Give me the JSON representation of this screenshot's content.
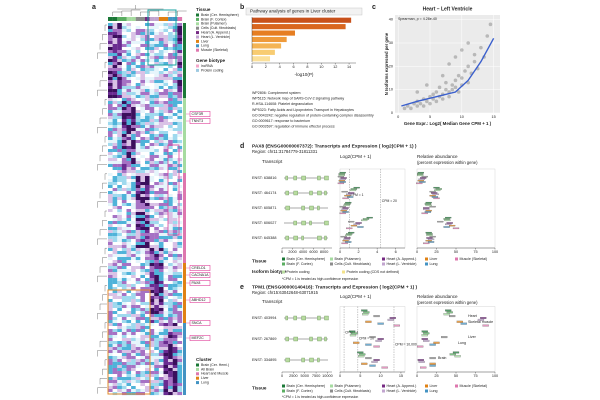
{
  "panel_labels": [
    "a",
    "b",
    "c",
    "d",
    "e"
  ],
  "heatmap": {
    "tissue_title": "Tissue",
    "tissues": [
      {
        "name": "Brain (Cer. Hemisphere)",
        "color": "#1b7837"
      },
      {
        "name": "Brain (F. Cortex)",
        "color": "#5aae61"
      },
      {
        "name": "Brain (Putamen)",
        "color": "#a6dba0"
      },
      {
        "name": "Cells (Cult. fibroblasts)",
        "color": "#8c8c8c"
      },
      {
        "name": "Heart (A. Append.)",
        "color": "#762a83"
      },
      {
        "name": "Heart (L. Ventricle)",
        "color": "#c2a5cf"
      },
      {
        "name": "Liver",
        "color": "#e08214"
      },
      {
        "name": "Lung",
        "color": "#4393c3"
      },
      {
        "name": "Muscle (Skeletal)",
        "color": "#de77ae"
      }
    ],
    "biotype_title": "Gene biotype",
    "biotypes": [
      {
        "name": "lncRNA",
        "color": "#f4a6c8"
      },
      {
        "name": "Protein coding",
        "color": "#9ecae1"
      }
    ],
    "genes": [
      "CSF3R",
      "TNNT3",
      "CRELD1",
      "CACNA1A",
      "PAX8",
      "ABHD12",
      "SNCA",
      "MEF2C"
    ],
    "cluster_title": "Cluster",
    "clusters": [
      {
        "name": "Brain (Cer. Hemi.)",
        "color": "#1b7837"
      },
      {
        "name": "All Brain",
        "color": "#a6dba0"
      },
      {
        "name": "Heart and Muscle",
        "color": "#de77ae"
      },
      {
        "name": "Liver",
        "color": "#e08214"
      },
      {
        "name": "Lung",
        "color": "#4393c3"
      }
    ]
  },
  "panel_d": {
    "title": "PAX8 (ENSG00000007372): Transcripts and Expression ( log2(CPM + 1) )",
    "region": "Region: chr11:31784779-31811331",
    "legend_title": "Tissue",
    "biotype_title": "Isoform biotype",
    "biotypes": [
      {
        "name": "Protein coding",
        "color": "#b8dca0"
      },
      {
        "name": "Protein coding (CDS not defined)",
        "color": "#f3e28a"
      }
    ],
    "footnote": "*CPM = 1 is treated as high-confidence expression"
  },
  "panel_e": {
    "title": "TPM1 (ENSG00000140416): Transcripts and Expression ( log2(CPM + 1) )",
    "region": "Region: chr15:63042648-63071915",
    "legend_title": "Tissue",
    "footnote": "*CPM = 1 is treated as high-confidence expression"
  },
  "chart_data": [
    {
      "type": "bar",
      "title": "Pathway analysis of genes in Liver cluster",
      "xlabel": "-log10(P)",
      "categories": [
        "WP2806: Complement system",
        "WP5115: Network map of SARS-CoV-2 signaling pathway",
        "R-HSA-114608: Platelet degranulation",
        "WP5323: Fatty Acids and Lipoproteins Transport in Hepatocytes",
        "GO:0043242: negative regulation of protein-containing complex disassembly",
        "GO:0009617: response to bacterium",
        "GO:0002697: regulation of immune effector process"
      ],
      "values": [
        14.3,
        13.5,
        6.2,
        5,
        4.2,
        3.3,
        2.6
      ],
      "colors": [
        "#c8511b",
        "#d9661f",
        "#e67e22",
        "#ef9a3a",
        "#f4b454",
        "#f8cc72",
        "#fbe09a"
      ],
      "xlim": [
        0,
        15
      ],
      "xticks": [
        0,
        2,
        4,
        6,
        8,
        10,
        12,
        14
      ]
    },
    {
      "type": "scatter",
      "title": "Heart – Left Ventricle",
      "subtitle": "Spearman, ρ = 4.28e-40",
      "xlabel": "Gene Expr.: Log2( Median Gene CPM + 1 )",
      "ylabel": "N Isoforms expressed per gene",
      "color": "#5a5a5a",
      "x": [
        1,
        1.5,
        2,
        2.5,
        3,
        3,
        3.5,
        4,
        4,
        4.5,
        5,
        5,
        5.5,
        5.5,
        6,
        6,
        6.5,
        6.5,
        7,
        7,
        7.5,
        7.5,
        8,
        8,
        8.5,
        8.5,
        9,
        9,
        9.5,
        9.5,
        10,
        10,
        10.5,
        11,
        11,
        11.5,
        12,
        12,
        12.5,
        13,
        13.5,
        14,
        14.5,
        3,
        4.5,
        7,
        8,
        9,
        10,
        11
      ],
      "y": [
        2,
        3,
        2,
        4,
        3,
        5,
        4,
        6,
        3,
        5,
        7,
        4,
        6,
        8,
        5,
        9,
        7,
        11,
        8,
        6,
        10,
        13,
        9,
        7,
        12,
        10,
        14,
        11,
        9,
        16,
        12,
        15,
        18,
        13,
        20,
        17,
        22,
        25,
        19,
        28,
        24,
        33,
        38,
        9,
        12,
        16,
        21,
        24,
        27,
        30
      ],
      "trend": {
        "color": "#3a5fcd",
        "x": [
          0.5,
          3,
          6,
          9,
          11,
          13,
          15
        ],
        "y": [
          3,
          5,
          7,
          9,
          14,
          22,
          32
        ]
      },
      "xlim": [
        -0.5,
        16
      ],
      "xticks": [
        0,
        5,
        10,
        15
      ],
      "ylim": [
        0,
        42
      ],
      "yticks": [
        0,
        10,
        20,
        30,
        40
      ],
      "grid": true
    },
    {
      "type": "structure",
      "title": "Transcript",
      "categories": [
        "ENST: 638816",
        "ENST: 464174",
        "ENST: 605871",
        "ENST: 606027",
        "ENST: 645388"
      ],
      "colors": [
        "#b8dca0",
        "#b8dca0",
        "#b8dca0",
        "#b8dca0",
        "#b8dca0"
      ],
      "xlim": [
        0,
        9500
      ],
      "xticks": [
        0,
        2000,
        4000,
        6000,
        8000
      ]
    },
    {
      "type": "box",
      "title": "Log2(CPM + 1)",
      "xlim": [
        0,
        7
      ],
      "xticks": [
        0,
        2,
        4,
        6
      ],
      "annotations": [
        {
          "text": "CPM = 1",
          "x": 1
        },
        {
          "text": "CPM = 20",
          "x": 4.39
        }
      ],
      "series": [
        {
          "name": "Brain (Cer. Hemisphere)",
          "color": "#1b7837",
          "values": [
            0.3,
            1.8,
            0.9,
            3.2,
            1.2
          ]
        },
        {
          "name": "Brain (F. Cortex)",
          "color": "#5aae61",
          "values": [
            0.2,
            1.5,
            0.8,
            2.8,
            1.0
          ]
        },
        {
          "name": "Brain (Putamen)",
          "color": "#a6dba0",
          "values": [
            0.2,
            1.4,
            0.7,
            2.6,
            0.9
          ]
        },
        {
          "name": "Cells (Cult. fibroblasts)",
          "color": "#8c8c8c",
          "values": [
            0.1,
            0.5,
            0.3,
            1.2,
            0.4
          ]
        },
        {
          "name": "Heart (A. Append.)",
          "color": "#762a83",
          "values": [
            0.4,
            1.2,
            0.6,
            2.0,
            0.8
          ]
        },
        {
          "name": "Heart (L. Ventricle)",
          "color": "#c2a5cf",
          "values": [
            0.3,
            1.0,
            0.5,
            1.8,
            0.7
          ]
        },
        {
          "name": "Liver",
          "color": "#e08214",
          "values": [
            0.2,
            0.8,
            0.4,
            1.5,
            0.6
          ]
        },
        {
          "name": "Lung",
          "color": "#4393c3",
          "values": [
            0.3,
            1.1,
            0.6,
            2.2,
            0.9
          ]
        },
        {
          "name": "Muscle (Skeletal)",
          "color": "#de77ae",
          "values": [
            0.1,
            0.6,
            0.3,
            1.0,
            0.5
          ]
        }
      ]
    },
    {
      "type": "box",
      "title": "Relative abundance",
      "subtitle": "(percent expression within gene)",
      "xlim": [
        0,
        100
      ],
      "xticks": [
        0,
        25,
        50,
        75,
        100
      ],
      "series": [
        {
          "color": "#1b7837",
          "values": [
            5,
            25,
            15,
            40,
            15
          ]
        },
        {
          "color": "#5aae61",
          "values": [
            4,
            28,
            14,
            38,
            16
          ]
        },
        {
          "color": "#a6dba0",
          "values": [
            4,
            26,
            15,
            39,
            16
          ]
        },
        {
          "color": "#8c8c8c",
          "values": [
            10,
            20,
            20,
            30,
            20
          ]
        },
        {
          "color": "#762a83",
          "values": [
            8,
            22,
            12,
            42,
            16
          ]
        },
        {
          "color": "#c2a5cf",
          "values": [
            6,
            24,
            12,
            40,
            18
          ]
        },
        {
          "color": "#e08214",
          "values": [
            5,
            20,
            15,
            45,
            15
          ]
        },
        {
          "color": "#4393c3",
          "values": [
            7,
            23,
            14,
            38,
            18
          ]
        },
        {
          "color": "#de77ae",
          "values": [
            3,
            25,
            10,
            50,
            12
          ]
        }
      ]
    },
    {
      "type": "structure",
      "title": "Transcript",
      "categories": [
        "ENST: 403994",
        "ENST: 267869",
        "ENST: 334895"
      ],
      "colors": [
        "#b8dca0",
        "#b8dca0",
        "#b8dca0"
      ],
      "xlim": [
        0,
        11000
      ],
      "xticks": [
        0,
        2500,
        5000,
        7500,
        10000
      ]
    },
    {
      "type": "box",
      "title": "Log2(CPM + 1)",
      "xlim": [
        0,
        16
      ],
      "xticks": [
        0,
        5,
        10,
        15
      ],
      "annotations": [
        {
          "text": "CPM = 1",
          "x": 1
        },
        {
          "text": "CPM = 20",
          "x": 4.39
        },
        {
          "text": "CPM = 10,000",
          "x": 13.29
        }
      ],
      "series": [
        {
          "name": "Brain (Cer. Hemisphere)",
          "color": "#1b7837",
          "values": [
            6,
            3,
            5
          ]
        },
        {
          "name": "Brain (F. Cortex)",
          "color": "#5aae61",
          "values": [
            6.5,
            3.5,
            5.5
          ]
        },
        {
          "name": "Brain (Putamen)",
          "color": "#a6dba0",
          "values": [
            6.2,
            3.2,
            5.2
          ]
        },
        {
          "name": "Cells (Cult. fibroblasts)",
          "color": "#8c8c8c",
          "values": [
            9,
            8,
            7
          ]
        },
        {
          "name": "Heart (A. Append.)",
          "color": "#762a83",
          "values": [
            13,
            10,
            9
          ]
        },
        {
          "name": "Heart (L. Ventricle)",
          "color": "#c2a5cf",
          "values": [
            12.5,
            9.5,
            8.5
          ]
        },
        {
          "name": "Liver",
          "color": "#e08214",
          "values": [
            7,
            4,
            6
          ]
        },
        {
          "name": "Lung",
          "color": "#4393c3",
          "values": [
            10,
            7,
            8
          ]
        },
        {
          "name": "Muscle (Skeletal)",
          "color": "#de77ae",
          "values": [
            14,
            9,
            11
          ]
        }
      ]
    },
    {
      "type": "box",
      "title": "Relative abundance",
      "subtitle": "(percent expression within gene)",
      "xlim": [
        0,
        100
      ],
      "xticks": [
        0,
        25,
        50,
        75,
        100
      ],
      "labels": [
        "Heart",
        "Skeletal muscle",
        "Liver",
        "Lung",
        "Brain"
      ],
      "series": [
        {
          "color": "#1b7837",
          "values": [
            40,
            10,
            50
          ]
        },
        {
          "color": "#5aae61",
          "values": [
            42,
            12,
            46
          ]
        },
        {
          "color": "#a6dba0",
          "values": [
            38,
            10,
            52
          ]
        },
        {
          "color": "#8c8c8c",
          "values": [
            45,
            35,
            20
          ]
        },
        {
          "color": "#762a83",
          "values": [
            85,
            10,
            5
          ]
        },
        {
          "color": "#c2a5cf",
          "values": [
            82,
            12,
            6
          ]
        },
        {
          "color": "#e08214",
          "values": [
            55,
            25,
            20
          ]
        },
        {
          "color": "#4393c3",
          "values": [
            60,
            20,
            20
          ]
        },
        {
          "color": "#de77ae",
          "values": [
            88,
            4,
            8
          ]
        }
      ]
    }
  ]
}
